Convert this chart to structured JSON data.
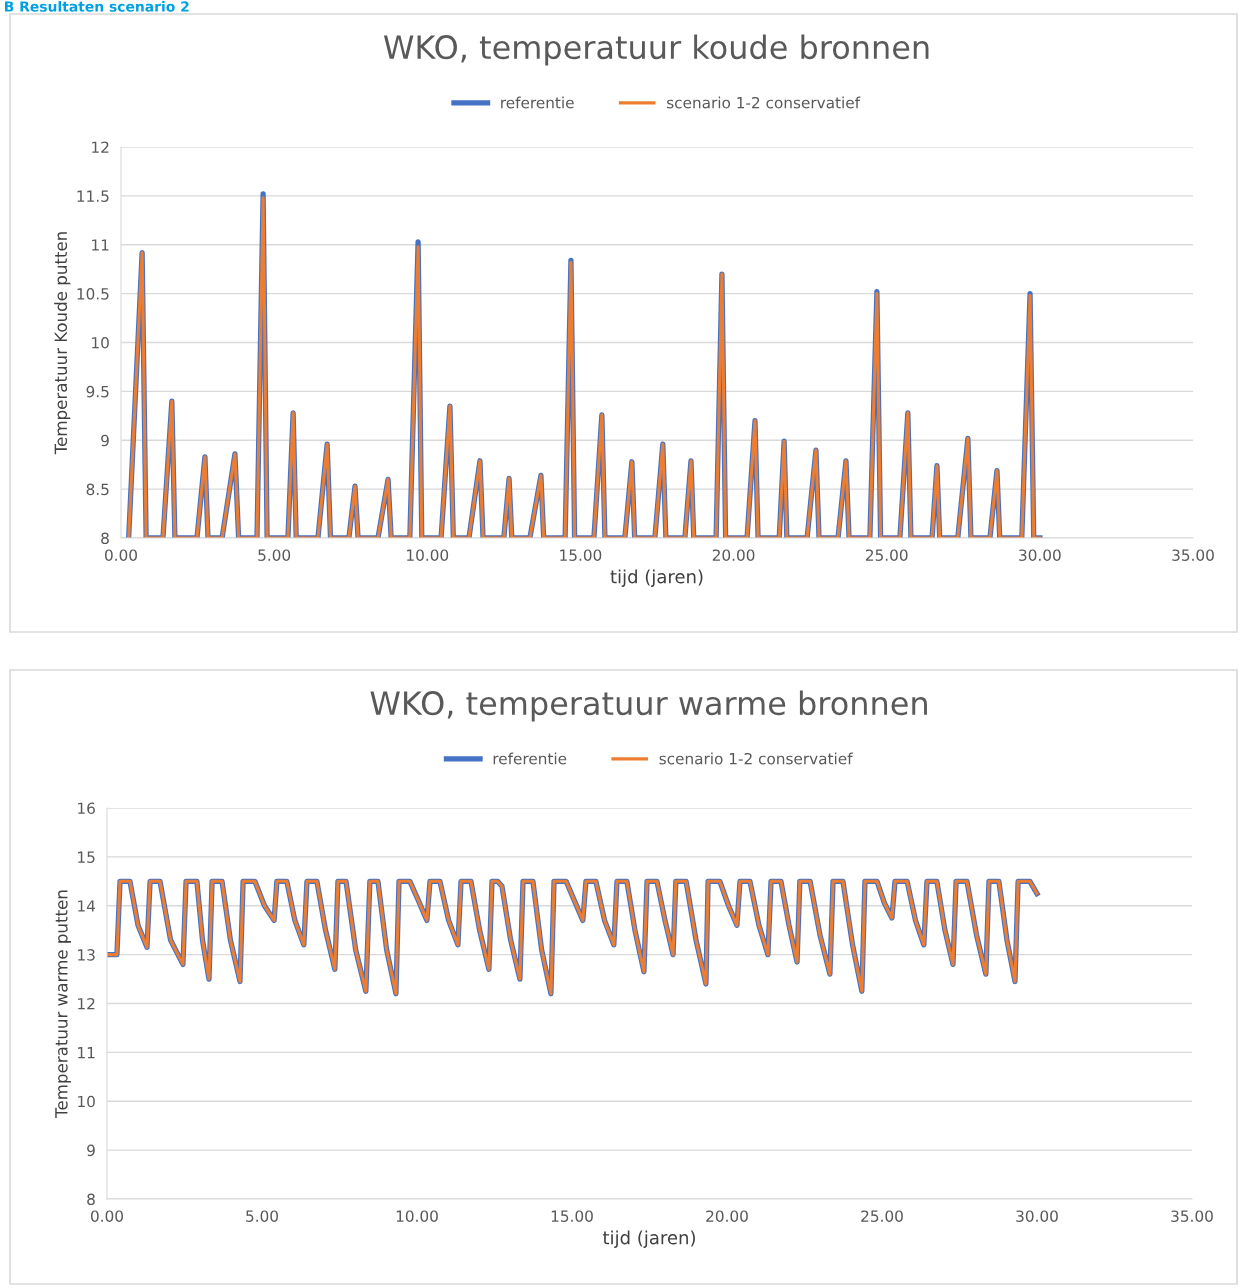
{
  "chart_data": [
    {
      "type": "line",
      "title": "WKO, temperatuur koude bronnen",
      "xlabel": "tijd (jaren)",
      "ylabel": "Temperatuur Koude putten",
      "annotations": [
        "B Resultaten scenario 2"
      ],
      "x": [
        0.25,
        0.69,
        0.82,
        1.37,
        1.66,
        1.76,
        2.48,
        2.74,
        2.84,
        3.3,
        3.72,
        3.84,
        4.44,
        4.64,
        4.77,
        5.45,
        5.62,
        5.72,
        6.43,
        6.73,
        6.84,
        7.44,
        7.64,
        7.74,
        8.39,
        8.72,
        8.82,
        9.43,
        9.7,
        9.82,
        10.45,
        10.74,
        10.85,
        11.36,
        11.72,
        11.82,
        12.5,
        12.67,
        12.76,
        13.35,
        13.71,
        13.8,
        14.5,
        14.69,
        14.81,
        15.44,
        15.7,
        15.8,
        16.45,
        16.68,
        16.77,
        17.43,
        17.69,
        17.79,
        18.41,
        18.61,
        18.7,
        19.43,
        19.62,
        19.74,
        20.44,
        20.7,
        20.8,
        21.49,
        21.65,
        21.74,
        22.4,
        22.69,
        22.79,
        23.41,
        23.67,
        23.77,
        24.45,
        24.68,
        24.8,
        25.43,
        25.69,
        25.79,
        26.48,
        26.64,
        26.73,
        27.32,
        27.65,
        27.75,
        28.37,
        28.6,
        28.69,
        29.41,
        29.68,
        29.8,
        30.0
      ],
      "series": [
        {
          "name": "referentie",
          "color": "#4472c4",
          "values": [
            8,
            10.92,
            8,
            8,
            9.4,
            8,
            8,
            8.83,
            8,
            8,
            8.86,
            8,
            8,
            11.52,
            8,
            8,
            9.28,
            8,
            8,
            8.96,
            8,
            8,
            8.53,
            8,
            8,
            8.6,
            8,
            8,
            11.03,
            8,
            8,
            9.35,
            8,
            8,
            8.79,
            8,
            8,
            8.61,
            8,
            8,
            8.64,
            8,
            8,
            10.84,
            8,
            8,
            9.26,
            8,
            8,
            8.78,
            8,
            8,
            8.96,
            8,
            8,
            8.79,
            8,
            8,
            10.7,
            8,
            8,
            9.2,
            8,
            8,
            8.99,
            8,
            8,
            8.9,
            8,
            8,
            8.79,
            8,
            8,
            10.52,
            8,
            8,
            9.28,
            8,
            8,
            8.74,
            8,
            8,
            9.02,
            8,
            8,
            8.69,
            8,
            8,
            10.5,
            8,
            8
          ]
        },
        {
          "name": "scenario 1-2 conservatief",
          "color": "#ed7d31",
          "values": [
            8,
            10.92,
            8,
            8,
            9.4,
            8,
            8,
            8.83,
            8,
            8,
            8.86,
            8,
            8,
            11.48,
            8,
            8,
            9.28,
            8,
            8,
            8.96,
            8,
            8,
            8.53,
            8,
            8,
            8.6,
            8,
            8,
            10.98,
            8,
            8,
            9.35,
            8,
            8,
            8.79,
            8,
            8,
            8.61,
            8,
            8,
            8.64,
            8,
            8,
            10.82,
            8,
            8,
            9.26,
            8,
            8,
            8.78,
            8,
            8,
            8.96,
            8,
            8,
            8.79,
            8,
            8,
            10.7,
            8,
            8,
            9.2,
            8,
            8,
            8.99,
            8,
            8,
            8.9,
            8,
            8,
            8.79,
            8,
            8,
            10.5,
            8,
            8,
            9.28,
            8,
            8,
            8.74,
            8,
            8,
            9.02,
            8,
            8,
            8.69,
            8,
            8,
            10.48,
            8,
            8
          ]
        }
      ],
      "xlim": [
        0,
        35
      ],
      "xticks": [
        {
          "value": 0,
          "label": "0.00"
        },
        {
          "value": 5,
          "label": "5.00"
        },
        {
          "value": 10,
          "label": "10.00"
        },
        {
          "value": 15,
          "label": "15.00"
        },
        {
          "value": 20,
          "label": "20.00"
        },
        {
          "value": 25,
          "label": "25.00"
        },
        {
          "value": 30,
          "label": "30.00"
        },
        {
          "value": 35,
          "label": "35.00"
        }
      ],
      "ylim": [
        8,
        12
      ],
      "yticks": [
        8,
        8.5,
        9,
        9.5,
        10,
        10.5,
        11,
        11.5,
        12
      ],
      "grid": "y",
      "legend": "top"
    },
    {
      "type": "line",
      "title": "WKO, temperatuur warme bronnen",
      "xlabel": "tijd (jaren)",
      "ylabel": "Temperatuur warme putten",
      "x": [
        0,
        0.32,
        0.42,
        0.74,
        1.0,
        1.29,
        1.39,
        1.71,
        2.05,
        2.45,
        2.55,
        2.9,
        3.08,
        3.29,
        3.39,
        3.71,
        3.98,
        4.29,
        4.39,
        4.77,
        5.08,
        5.39,
        5.48,
        5.8,
        6.06,
        6.35,
        6.45,
        6.77,
        7.05,
        7.35,
        7.45,
        7.71,
        8.02,
        8.35,
        8.48,
        8.74,
        9.02,
        9.32,
        9.42,
        9.77,
        10.05,
        10.32,
        10.42,
        10.74,
        11.02,
        11.32,
        11.42,
        11.74,
        12.02,
        12.32,
        12.42,
        12.6,
        12.74,
        13.02,
        13.32,
        13.42,
        13.74,
        14.02,
        14.32,
        14.42,
        14.81,
        15.08,
        15.35,
        15.45,
        15.77,
        16.05,
        16.35,
        16.45,
        16.77,
        17.03,
        17.32,
        17.42,
        17.74,
        18.0,
        18.26,
        18.35,
        18.68,
        19.0,
        19.32,
        19.39,
        19.77,
        20.05,
        20.32,
        20.42,
        20.74,
        21.03,
        21.32,
        21.42,
        21.74,
        22.0,
        22.26,
        22.35,
        22.68,
        23.0,
        23.32,
        23.42,
        23.74,
        24.05,
        24.35,
        24.45,
        24.84,
        25.08,
        25.32,
        25.42,
        25.81,
        26.08,
        26.35,
        26.45,
        26.77,
        27.03,
        27.29,
        27.39,
        27.74,
        28.05,
        28.35,
        28.45,
        28.77,
        29.03,
        29.29,
        29.39,
        29.77,
        30.0
      ],
      "series": [
        {
          "name": "referentie",
          "color": "#4472c4",
          "values": [
            13,
            13,
            14.5,
            14.5,
            13.6,
            13.15,
            14.5,
            14.5,
            13.3,
            12.8,
            14.5,
            14.5,
            13.3,
            12.5,
            14.5,
            14.5,
            13.3,
            12.45,
            14.5,
            14.5,
            14,
            13.7,
            14.5,
            14.5,
            13.7,
            13.2,
            14.5,
            14.5,
            13.5,
            12.7,
            14.5,
            14.5,
            13.1,
            12.25,
            14.5,
            14.5,
            13.1,
            12.2,
            14.5,
            14.5,
            14.1,
            13.7,
            14.5,
            14.5,
            13.7,
            13.2,
            14.5,
            14.5,
            13.5,
            12.7,
            14.5,
            14.5,
            14.4,
            13.3,
            12.5,
            14.5,
            14.5,
            13.1,
            12.2,
            14.5,
            14.5,
            14.1,
            13.7,
            14.5,
            14.5,
            13.7,
            13.2,
            14.5,
            14.5,
            13.5,
            12.65,
            14.5,
            14.5,
            13.7,
            13,
            14.5,
            14.5,
            13.3,
            12.4,
            14.5,
            14.5,
            14,
            13.6,
            14.5,
            14.5,
            13.6,
            13,
            14.5,
            14.5,
            13.6,
            12.85,
            14.5,
            14.5,
            13.4,
            12.6,
            14.5,
            14.5,
            13.2,
            12.25,
            14.5,
            14.5,
            14.05,
            13.75,
            14.5,
            14.5,
            13.7,
            13.2,
            14.5,
            14.5,
            13.5,
            12.8,
            14.5,
            14.5,
            13.4,
            12.6,
            14.5,
            14.5,
            13.3,
            12.45,
            14.5,
            14.5,
            14.25
          ]
        },
        {
          "name": "scenario 1-2 conservatief",
          "color": "#ed7d31",
          "values": [
            13,
            13,
            14.5,
            14.5,
            13.6,
            13.15,
            14.5,
            14.5,
            13.3,
            12.8,
            14.5,
            14.5,
            13.3,
            12.5,
            14.5,
            14.5,
            13.3,
            12.45,
            14.5,
            14.5,
            14,
            13.7,
            14.5,
            14.5,
            13.7,
            13.2,
            14.5,
            14.5,
            13.5,
            12.7,
            14.5,
            14.5,
            13.1,
            12.25,
            14.5,
            14.5,
            13.1,
            12.2,
            14.5,
            14.5,
            14.1,
            13.7,
            14.5,
            14.5,
            13.7,
            13.2,
            14.5,
            14.5,
            13.5,
            12.7,
            14.5,
            14.5,
            14.4,
            13.3,
            12.5,
            14.5,
            14.5,
            13.1,
            12.2,
            14.5,
            14.5,
            14.1,
            13.7,
            14.5,
            14.5,
            13.7,
            13.2,
            14.5,
            14.5,
            13.5,
            12.65,
            14.5,
            14.5,
            13.7,
            13,
            14.5,
            14.5,
            13.3,
            12.4,
            14.5,
            14.5,
            14,
            13.6,
            14.5,
            14.5,
            13.6,
            13,
            14.5,
            14.5,
            13.6,
            12.85,
            14.5,
            14.5,
            13.4,
            12.6,
            14.5,
            14.5,
            13.2,
            12.25,
            14.5,
            14.5,
            14.05,
            13.75,
            14.5,
            14.5,
            13.7,
            13.2,
            14.5,
            14.5,
            13.5,
            12.8,
            14.5,
            14.5,
            13.4,
            12.6,
            14.5,
            14.5,
            13.3,
            12.45,
            14.5,
            14.5,
            14.25
          ]
        }
      ],
      "xlim": [
        0,
        35
      ],
      "xticks": [
        {
          "value": 0,
          "label": "0.00"
        },
        {
          "value": 5,
          "label": "5.00"
        },
        {
          "value": 10,
          "label": "10.00"
        },
        {
          "value": 15,
          "label": "15.00"
        },
        {
          "value": 20,
          "label": "20.00"
        },
        {
          "value": 25,
          "label": "25.00"
        },
        {
          "value": 30,
          "label": "30.00"
        },
        {
          "value": 35,
          "label": "35.00"
        }
      ],
      "ylim": [
        8,
        16
      ],
      "yticks": [
        8,
        9,
        10,
        11,
        12,
        13,
        14,
        15,
        16
      ],
      "grid": "y",
      "legend": "top"
    }
  ]
}
